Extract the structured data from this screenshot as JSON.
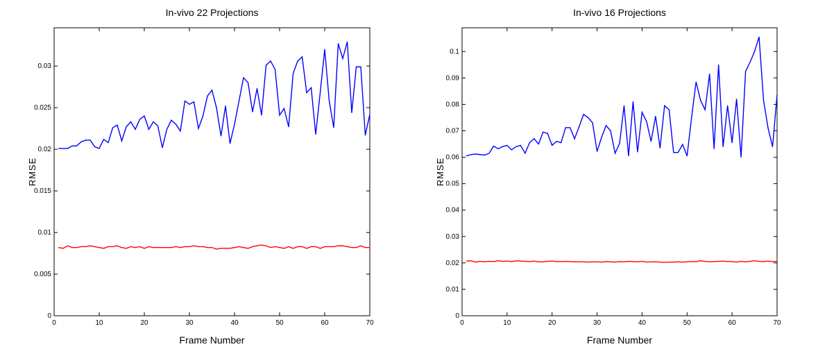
{
  "chart_data": [
    {
      "type": "line",
      "title": "In-vivo 22 Projections",
      "xlabel": "Frame Number",
      "ylabel": "RMSE",
      "xlim": [
        0,
        70
      ],
      "ylim": [
        0,
        0.0346
      ],
      "xticks": [
        "0",
        "10",
        "20",
        "30",
        "40",
        "50",
        "60",
        "70"
      ],
      "yticks": [
        "0",
        "0.005",
        "0.01",
        "0.015",
        "0.02",
        "0.025",
        "0.03"
      ],
      "grid": false,
      "x": [
        1,
        2,
        3,
        4,
        5,
        6,
        7,
        8,
        9,
        10,
        11,
        12,
        13,
        14,
        15,
        16,
        17,
        18,
        19,
        20,
        21,
        22,
        23,
        24,
        25,
        26,
        27,
        28,
        29,
        30,
        31,
        32,
        33,
        34,
        35,
        36,
        37,
        38,
        39,
        40,
        41,
        42,
        43,
        44,
        45,
        46,
        47,
        48,
        49,
        50,
        51,
        52,
        53,
        54,
        55,
        56,
        57,
        58,
        59,
        60,
        61,
        62,
        63,
        64,
        65,
        66,
        67,
        68,
        69,
        70
      ],
      "series": [
        {
          "color": "#0000ff",
          "values": [
            0.0201,
            0.0201,
            0.0201,
            0.0204,
            0.0204,
            0.0209,
            0.0211,
            0.0211,
            0.0203,
            0.0201,
            0.0212,
            0.0208,
            0.0226,
            0.0229,
            0.021,
            0.0227,
            0.0233,
            0.0224,
            0.0236,
            0.024,
            0.0224,
            0.0233,
            0.0228,
            0.0202,
            0.0224,
            0.0235,
            0.023,
            0.0222,
            0.0258,
            0.0254,
            0.0257,
            0.0225,
            0.024,
            0.0264,
            0.0271,
            0.025,
            0.0216,
            0.0252,
            0.0207,
            0.023,
            0.0258,
            0.0286,
            0.028,
            0.0245,
            0.0273,
            0.0241,
            0.0301,
            0.0306,
            0.0296,
            0.0241,
            0.0249,
            0.0227,
            0.0291,
            0.0306,
            0.0311,
            0.0268,
            0.0274,
            0.0218,
            0.0268,
            0.032,
            0.0258,
            0.0226,
            0.0327,
            0.0309,
            0.0329,
            0.0244,
            0.0299,
            0.0299,
            0.0217,
            0.0242
          ]
        },
        {
          "color": "#ff0000",
          "values": [
            0.0082,
            0.0081,
            0.0084,
            0.0082,
            0.0082,
            0.0083,
            0.0083,
            0.0084,
            0.0083,
            0.0082,
            0.0081,
            0.0083,
            0.0083,
            0.0084,
            0.0082,
            0.0081,
            0.0083,
            0.0082,
            0.0083,
            0.0081,
            0.0083,
            0.0082,
            0.0082,
            0.0082,
            0.0082,
            0.0082,
            0.0083,
            0.0082,
            0.0083,
            0.0083,
            0.0084,
            0.0083,
            0.0083,
            0.0082,
            0.0082,
            0.008,
            0.0081,
            0.0081,
            0.0081,
            0.0082,
            0.0083,
            0.0082,
            0.0081,
            0.0083,
            0.0084,
            0.0085,
            0.0084,
            0.0082,
            0.0083,
            0.0082,
            0.0081,
            0.0083,
            0.0081,
            0.0083,
            0.0083,
            0.0081,
            0.0083,
            0.0083,
            0.0081,
            0.0083,
            0.0083,
            0.0083,
            0.0084,
            0.0084,
            0.0083,
            0.0082,
            0.0082,
            0.0084,
            0.0082,
            0.0082
          ]
        }
      ]
    },
    {
      "type": "line",
      "title": "In-vivo 16 Projections",
      "xlabel": "Frame Number",
      "ylabel": "RMSE",
      "xlim": [
        0,
        70
      ],
      "ylim": [
        0,
        0.109
      ],
      "xticks": [
        "0",
        "10",
        "20",
        "30",
        "40",
        "50",
        "60",
        "70"
      ],
      "yticks": [
        "0",
        "0.01",
        "0.02",
        "0.03",
        "0.04",
        "0.05",
        "0.06",
        "0.07",
        "0.08",
        "0.09",
        "0.1"
      ],
      "grid": false,
      "x": [
        1,
        2,
        3,
        4,
        5,
        6,
        7,
        8,
        9,
        10,
        11,
        12,
        13,
        14,
        15,
        16,
        17,
        18,
        19,
        20,
        21,
        22,
        23,
        24,
        25,
        26,
        27,
        28,
        29,
        30,
        31,
        32,
        33,
        34,
        35,
        36,
        37,
        38,
        39,
        40,
        41,
        42,
        43,
        44,
        45,
        46,
        47,
        48,
        49,
        50,
        51,
        52,
        53,
        54,
        55,
        56,
        57,
        58,
        59,
        60,
        61,
        62,
        63,
        64,
        65,
        66,
        67,
        68,
        69,
        70
      ],
      "series": [
        {
          "color": "#0000ff",
          "values": [
            0.0605,
            0.061,
            0.0612,
            0.061,
            0.0608,
            0.0615,
            0.0642,
            0.0632,
            0.064,
            0.0645,
            0.0628,
            0.064,
            0.0645,
            0.0615,
            0.0655,
            0.067,
            0.065,
            0.0695,
            0.069,
            0.0645,
            0.066,
            0.0655,
            0.0712,
            0.0712,
            0.067,
            0.0715,
            0.0762,
            0.075,
            0.073,
            0.0622,
            0.0675,
            0.072,
            0.07,
            0.0615,
            0.0652,
            0.0795,
            0.0605,
            0.081,
            0.062,
            0.077,
            0.0735,
            0.066,
            0.0755,
            0.0635,
            0.0795,
            0.078,
            0.0618,
            0.0618,
            0.0648,
            0.0605,
            0.075,
            0.0885,
            0.0815,
            0.078,
            0.0915,
            0.0632,
            0.095,
            0.064,
            0.0795,
            0.0655,
            0.082,
            0.06,
            0.0925,
            0.096,
            0.1,
            0.1055,
            0.0815,
            0.071,
            0.064,
            0.0835
          ]
        },
        {
          "color": "#ff0000",
          "values": [
            0.0207,
            0.0208,
            0.0203,
            0.0206,
            0.0204,
            0.0206,
            0.0205,
            0.0208,
            0.0206,
            0.0207,
            0.0205,
            0.0208,
            0.0207,
            0.0206,
            0.0205,
            0.0207,
            0.0204,
            0.0204,
            0.0206,
            0.0207,
            0.0205,
            0.0205,
            0.0206,
            0.0205,
            0.0204,
            0.0204,
            0.0204,
            0.0203,
            0.0204,
            0.0204,
            0.0203,
            0.0205,
            0.0204,
            0.0203,
            0.0205,
            0.0204,
            0.0206,
            0.0205,
            0.0204,
            0.0206,
            0.0203,
            0.0204,
            0.0204,
            0.0203,
            0.0202,
            0.0203,
            0.0203,
            0.0204,
            0.0203,
            0.0204,
            0.0205,
            0.0205,
            0.0208,
            0.0206,
            0.0204,
            0.0205,
            0.0206,
            0.0207,
            0.0205,
            0.0205,
            0.0203,
            0.0206,
            0.0204,
            0.0206,
            0.0208,
            0.0206,
            0.0205,
            0.0207,
            0.0205,
            0.0206
          ]
        }
      ]
    }
  ]
}
